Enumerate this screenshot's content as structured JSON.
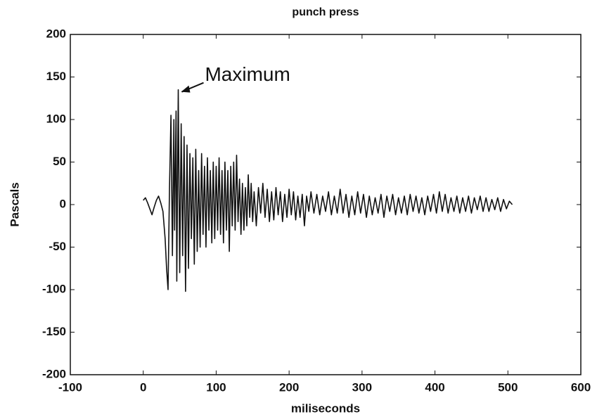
{
  "chart_data": {
    "type": "line",
    "title": "punch press",
    "xlabel": "miliseconds",
    "ylabel": "Pascals",
    "annotation": "Maximum",
    "color": "#111111",
    "xlim": [
      -100,
      600
    ],
    "xticks": [
      -100,
      0,
      100,
      200,
      300,
      400,
      500,
      600
    ],
    "ylim": [
      -200,
      200
    ],
    "yticks": [
      -200,
      -150,
      -100,
      -50,
      0,
      50,
      100,
      150,
      200
    ],
    "x": [
      0,
      3,
      6,
      9,
      12,
      15,
      18,
      21,
      24,
      27,
      30,
      32,
      34,
      36,
      38,
      40,
      42,
      43,
      45,
      46,
      48,
      50,
      52,
      54,
      56,
      58,
      60,
      62,
      64,
      66,
      68,
      70,
      72,
      74,
      76,
      78,
      80,
      82,
      84,
      86,
      88,
      90,
      92,
      94,
      96,
      98,
      100,
      102,
      104,
      106,
      108,
      110,
      112,
      114,
      116,
      118,
      120,
      122,
      124,
      126,
      128,
      130,
      132,
      134,
      136,
      138,
      140,
      142,
      144,
      146,
      148,
      150,
      152,
      155,
      158,
      161,
      164,
      167,
      170,
      173,
      176,
      179,
      182,
      185,
      188,
      191,
      194,
      197,
      200,
      203,
      206,
      209,
      212,
      215,
      218,
      221,
      224,
      227,
      230,
      234,
      238,
      242,
      246,
      250,
      254,
      258,
      262,
      266,
      270,
      274,
      278,
      282,
      286,
      290,
      294,
      298,
      302,
      306,
      310,
      314,
      318,
      322,
      326,
      330,
      334,
      338,
      342,
      346,
      350,
      354,
      358,
      362,
      366,
      370,
      374,
      378,
      382,
      386,
      390,
      394,
      398,
      402,
      406,
      410,
      414,
      418,
      422,
      426,
      430,
      434,
      438,
      442,
      446,
      450,
      454,
      458,
      462,
      466,
      470,
      474,
      478,
      482,
      486,
      490,
      494,
      498,
      502,
      506
    ],
    "values": [
      5,
      8,
      2,
      -5,
      -12,
      -3,
      5,
      10,
      2,
      -8,
      -40,
      -75,
      -100,
      20,
      105,
      -60,
      100,
      -30,
      110,
      -90,
      135,
      -80,
      95,
      -60,
      80,
      -102,
      70,
      -75,
      60,
      -40,
      55,
      -70,
      65,
      -55,
      40,
      -50,
      60,
      -35,
      45,
      -50,
      55,
      -30,
      40,
      -45,
      50,
      -40,
      45,
      -30,
      55,
      -35,
      40,
      -45,
      50,
      -30,
      40,
      -55,
      45,
      -25,
      50,
      -30,
      58,
      -20,
      30,
      -35,
      25,
      -30,
      20,
      -25,
      35,
      -15,
      25,
      -20,
      15,
      -25,
      20,
      -10,
      25,
      -15,
      18,
      -20,
      15,
      -18,
      20,
      -12,
      15,
      -20,
      12,
      -15,
      18,
      -12,
      15,
      -18,
      10,
      -15,
      12,
      -25,
      10,
      -8,
      15,
      -10,
      12,
      -12,
      10,
      -8,
      15,
      -12,
      10,
      -10,
      18,
      -10,
      12,
      -15,
      10,
      -12,
      15,
      -10,
      12,
      -15,
      10,
      -12,
      8,
      -10,
      12,
      -15,
      10,
      -8,
      12,
      -12,
      8,
      -10,
      10,
      -12,
      12,
      -8,
      10,
      -10,
      8,
      -12,
      10,
      -8,
      12,
      -10,
      15,
      -8,
      12,
      -10,
      8,
      -8,
      10,
      -10,
      8,
      -8,
      10,
      -10,
      8,
      -6,
      10,
      -8,
      8,
      -8,
      6,
      -6,
      8,
      -8,
      6,
      -5,
      4,
      0
    ]
  }
}
